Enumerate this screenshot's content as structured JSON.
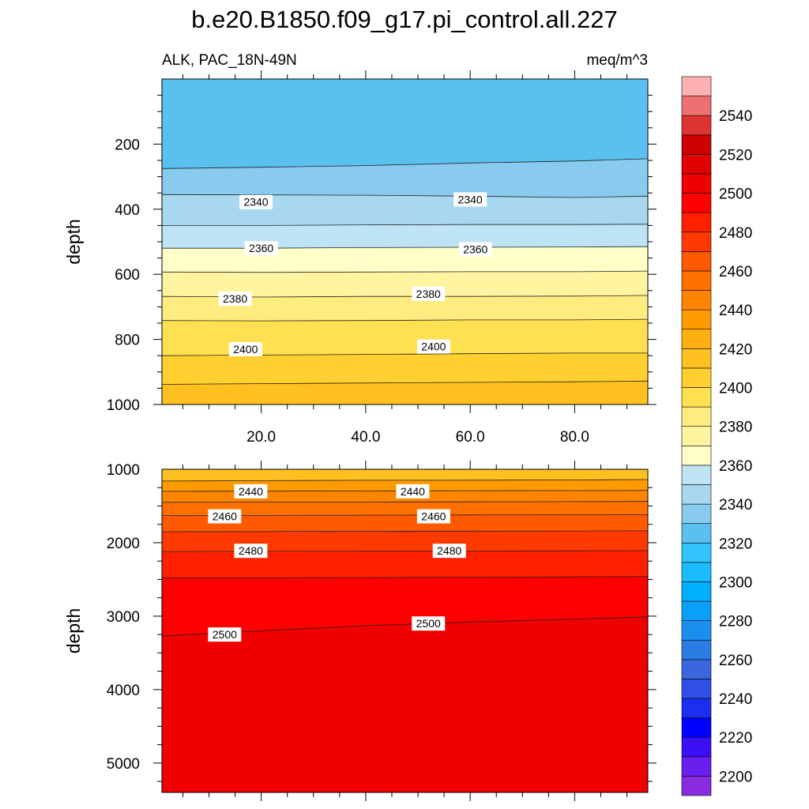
{
  "title": "b.e20.B1850.f09_g17.pi_control.all.227",
  "left_subtitle": "ALK, PAC_18N-49N",
  "right_subtitle": "meq/m^3",
  "chart_data": [
    {
      "type": "contour",
      "panel": "upper",
      "ylabel": "depth",
      "xlabel": "",
      "xlim": [
        1,
        94
      ],
      "ylim": [
        1000,
        0
      ],
      "x_ticks": [
        "20.0",
        "40.0",
        "60.0",
        "80.0"
      ],
      "x_tick_values": [
        20,
        40,
        60,
        80
      ],
      "y_ticks": [
        "200",
        "400",
        "600",
        "800",
        "1000"
      ],
      "y_tick_values": [
        200,
        400,
        600,
        800,
        1000
      ],
      "contour_levels": [
        2330,
        2340,
        2350,
        2360,
        2370,
        2380,
        2390,
        2400,
        2410
      ],
      "contour_depths": [
        {
          "level": 2330,
          "depth": [
            275,
            271,
            266,
            258,
            252,
            245
          ]
        },
        {
          "level": 2340,
          "depth": [
            355,
            356,
            357,
            360,
            364,
            360
          ]
        },
        {
          "level": 2350,
          "depth": [
            450,
            450,
            448,
            447,
            447,
            446
          ]
        },
        {
          "level": 2360,
          "depth": [
            520,
            520,
            518,
            517,
            516,
            515
          ]
        },
        {
          "level": 2370,
          "depth": [
            593,
            594,
            593,
            592,
            592,
            590
          ]
        },
        {
          "level": 2380,
          "depth": [
            668,
            670,
            668,
            668,
            667,
            665
          ]
        },
        {
          "level": 2390,
          "depth": [
            742,
            743,
            742,
            740,
            740,
            738
          ]
        },
        {
          "level": 2400,
          "depth": [
            850,
            848,
            846,
            844,
            842,
            842
          ]
        },
        {
          "level": 2410,
          "depth": [
            938,
            936,
            934,
            932,
            930,
            928
          ]
        }
      ],
      "contour_x": [
        1,
        20,
        40,
        60,
        80,
        94
      ],
      "line_labels": [
        {
          "text": "2340",
          "x": 19,
          "depth": 378
        },
        {
          "text": "2340",
          "x": 60,
          "depth": 370
        },
        {
          "text": "2360",
          "x": 20,
          "depth": 520
        },
        {
          "text": "2360",
          "x": 61,
          "depth": 523
        },
        {
          "text": "2380",
          "x": 15,
          "depth": 675
        },
        {
          "text": "2380",
          "x": 52,
          "depth": 660
        },
        {
          "text": "2400",
          "x": 17,
          "depth": 830
        },
        {
          "text": "2400",
          "x": 53,
          "depth": 822
        }
      ]
    },
    {
      "type": "contour",
      "panel": "lower",
      "ylabel": "depth",
      "xlabel": "",
      "xlim": [
        1,
        94
      ],
      "ylim": [
        5400,
        1000
      ],
      "x_tick_values": [
        20,
        40,
        60,
        80
      ],
      "y_ticks": [
        "1000",
        "2000",
        "3000",
        "4000",
        "5000"
      ],
      "y_tick_values": [
        1000,
        2000,
        3000,
        4000,
        5000
      ],
      "contour_levels": [
        2430,
        2440,
        2450,
        2460,
        2470,
        2480,
        2490,
        2500
      ],
      "contour_depths": [
        {
          "level": 2430,
          "depth": [
            1160,
            1155,
            1150,
            1148,
            1145,
            1140
          ]
        },
        {
          "level": 2440,
          "depth": [
            1300,
            1298,
            1295,
            1292,
            1290,
            1288
          ]
        },
        {
          "level": 2450,
          "depth": [
            1450,
            1448,
            1445,
            1443,
            1440,
            1438
          ]
        },
        {
          "level": 2460,
          "depth": [
            1630,
            1628,
            1625,
            1622,
            1620,
            1618
          ]
        },
        {
          "level": 2470,
          "depth": [
            1850,
            1848,
            1845,
            1842,
            1840,
            1838
          ]
        },
        {
          "level": 2480,
          "depth": [
            2120,
            2118,
            2115,
            2112,
            2110,
            2108
          ]
        },
        {
          "level": 2490,
          "depth": [
            2480,
            2478,
            2475,
            2470,
            2465,
            2460
          ]
        },
        {
          "level": 2500,
          "depth": [
            3270,
            3200,
            3130,
            3080,
            3040,
            3010
          ]
        }
      ],
      "contour_x": [
        1,
        20,
        40,
        60,
        80,
        94
      ],
      "line_labels": [
        {
          "text": "2440",
          "x": 18,
          "depth": 1300
        },
        {
          "text": "2440",
          "x": 49,
          "depth": 1300
        },
        {
          "text": "2460",
          "x": 13,
          "depth": 1640
        },
        {
          "text": "2460",
          "x": 53,
          "depth": 1640
        },
        {
          "text": "2480",
          "x": 18,
          "depth": 2110
        },
        {
          "text": "2480",
          "x": 56,
          "depth": 2110
        },
        {
          "text": "2500",
          "x": 13,
          "depth": 3250
        },
        {
          "text": "2500",
          "x": 52,
          "depth": 3100
        }
      ]
    }
  ],
  "colorbar": {
    "labels": [
      "2200",
      "2220",
      "2240",
      "2260",
      "2280",
      "2300",
      "2320",
      "2340",
      "2360",
      "2380",
      "2400",
      "2420",
      "2440",
      "2460",
      "2480",
      "2500",
      "2520",
      "2540"
    ],
    "label_values": [
      2200,
      2220,
      2240,
      2260,
      2280,
      2300,
      2320,
      2340,
      2360,
      2380,
      2400,
      2420,
      2440,
      2460,
      2480,
      2500,
      2520,
      2540
    ],
    "min": 2190,
    "max": 2560,
    "step": 10,
    "colors": [
      "#8a2be2",
      "#6a1fee",
      "#3b10f5",
      "#0000ff",
      "#1c2ff0",
      "#2f4fe6",
      "#3a67de",
      "#2c7ce6",
      "#1a8ff0",
      "#0aa0f8",
      "#00b0ff",
      "#1bbcff",
      "#33c3fb",
      "#5ac0f0",
      "#88cbee",
      "#a8d8f0",
      "#bde3f4",
      "#ffffc8",
      "#fff4a0",
      "#ffec80",
      "#ffe050",
      "#ffd030",
      "#ffc020",
      "#ffb010",
      "#ff9a00",
      "#ff8500",
      "#ff7000",
      "#ff5a00",
      "#ff3a00",
      "#ff2000",
      "#ff0000",
      "#f00000",
      "#e00000",
      "#cc0000",
      "#dd3333",
      "#ee7070",
      "#ffb0b0"
    ]
  }
}
